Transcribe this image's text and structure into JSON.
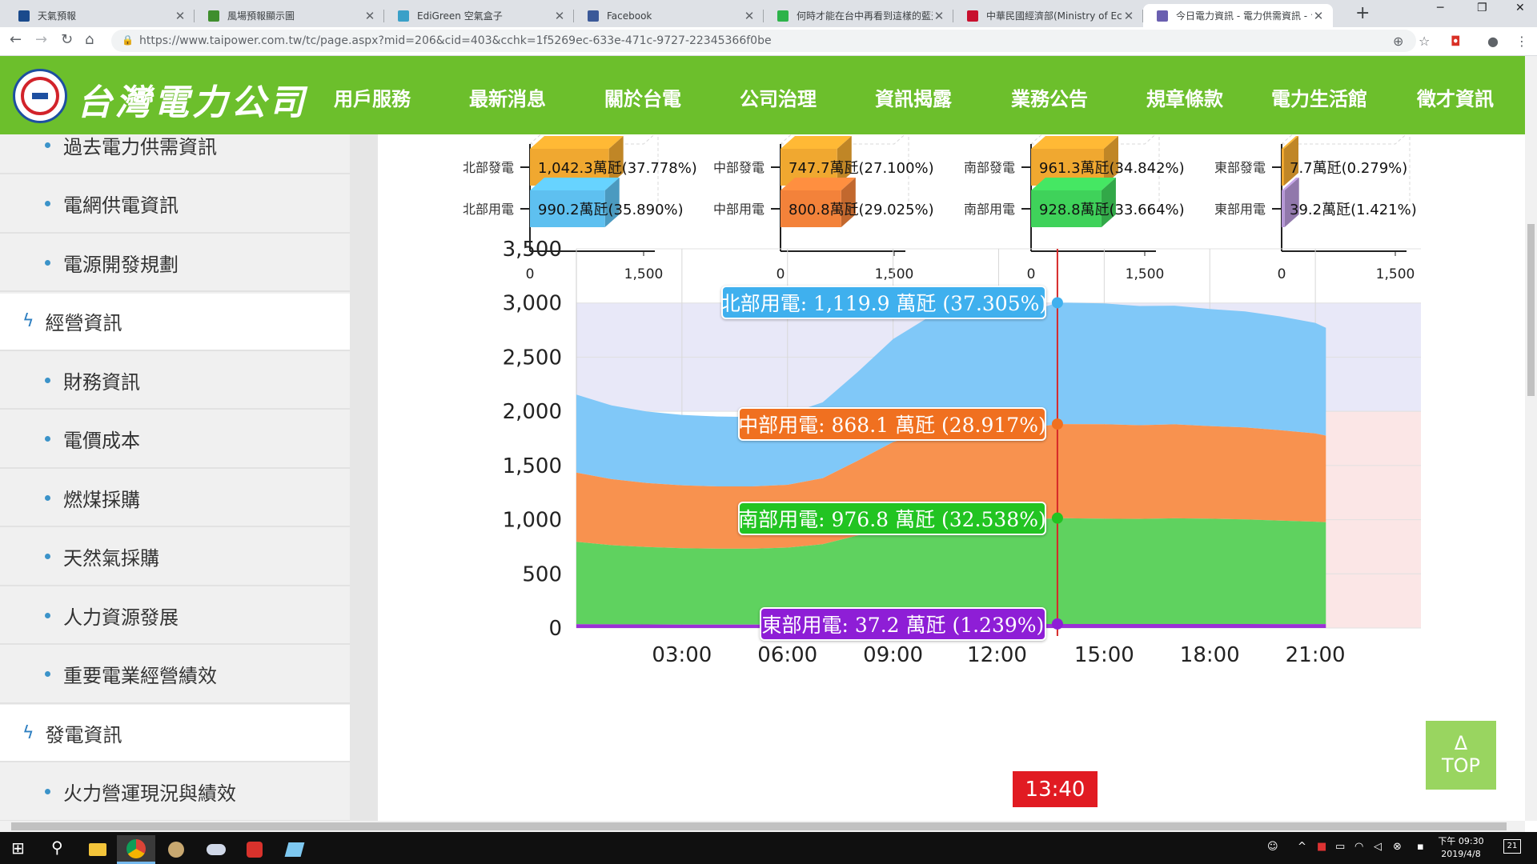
{
  "browser": {
    "tabs": [
      {
        "title": "天氣預報",
        "icon_color": "#1a4a8c",
        "active": false
      },
      {
        "title": "風場預報顯示圖",
        "icon_color": "#3f8e2d",
        "active": false
      },
      {
        "title": "EdiGreen 空氣盒子",
        "icon_color": "#3aa0c8",
        "active": false
      },
      {
        "title": "Facebook",
        "icon_color": "#3b5998",
        "active": false
      },
      {
        "title": "何時才能在台中再看到這樣的藍天",
        "icon_color": "#2db34a",
        "active": false
      },
      {
        "title": "中華民國經濟部(Ministry of Econ",
        "icon_color": "#c8102e",
        "active": false
      },
      {
        "title": "今日電力資訊 - 電力供需資訊 - 台",
        "icon_color": "#6a5fb0",
        "active": true
      }
    ],
    "new_tab": "+",
    "window": {
      "minimize": "─",
      "maximize": "❐",
      "close": "✕"
    },
    "url": "https://www.taipower.com.tw/tc/page.aspx?mid=206&cid=403&cchk=1f5269ec-633e-471c-9727-22345366f0be",
    "nav": {
      "back": "←",
      "forward": "→",
      "reload": "↻",
      "home": "⌂",
      "lock": "🔒"
    },
    "toolbar_icons": {
      "zoom": "⊕",
      "star": "☆",
      "ext": "◘",
      "profile": "●",
      "menu": "⋮"
    }
  },
  "site": {
    "logo_text": "台灣電力公司",
    "menu": [
      "用戶服務",
      "最新消息",
      "關於台電",
      "公司治理",
      "資訊揭露",
      "業務公告",
      "規章條款",
      "電力生活館",
      "徵才資訊"
    ],
    "active_menu_index": 4
  },
  "sidebar": {
    "items": [
      {
        "label": "過去電力供需資訊",
        "type": "sub"
      },
      {
        "label": "電網供電資訊",
        "type": "sub"
      },
      {
        "label": "電源開發規劃",
        "type": "sub"
      },
      {
        "label": "經營資訊",
        "type": "cat"
      },
      {
        "label": "財務資訊",
        "type": "sub"
      },
      {
        "label": "電價成本",
        "type": "sub"
      },
      {
        "label": "燃煤採購",
        "type": "sub"
      },
      {
        "label": "天然氣採購",
        "type": "sub"
      },
      {
        "label": "人力資源發展",
        "type": "sub"
      },
      {
        "label": "重要電業經營績效",
        "type": "sub"
      },
      {
        "label": "發電資訊",
        "type": "cat"
      },
      {
        "label": "火力營運現況與績效",
        "type": "sub"
      }
    ]
  },
  "chart_data": [
    {
      "type": "bar",
      "region": "北部",
      "categories": [
        "北部發電",
        "北部用電"
      ],
      "labels": [
        "1,042.3萬瓩(37.778%)",
        "990.2萬瓩(35.890%)"
      ],
      "values": [
        1042.3,
        990.2
      ],
      "colors": [
        "#f0a830",
        "#5ec0f0"
      ],
      "xlim": [
        0,
        1500
      ],
      "xticks": [
        "0",
        "1,500"
      ]
    },
    {
      "type": "bar",
      "region": "中部",
      "categories": [
        "中部發電",
        "中部用電"
      ],
      "labels": [
        "747.7萬瓩(27.100%)",
        "800.8萬瓩(29.025%)"
      ],
      "values": [
        747.7,
        800.8
      ],
      "colors": [
        "#f0a830",
        "#f3823a"
      ],
      "xlim": [
        0,
        1500
      ],
      "xticks": [
        "0",
        "1,500"
      ]
    },
    {
      "type": "bar",
      "region": "南部",
      "categories": [
        "南部發電",
        "南部用電"
      ],
      "labels": [
        "961.3萬瓩(34.842%)",
        "928.8萬瓩(33.664%)"
      ],
      "values": [
        961.3,
        928.8
      ],
      "colors": [
        "#f0a830",
        "#3fd25a"
      ],
      "xlim": [
        0,
        1500
      ],
      "xticks": [
        "0",
        "1,500"
      ]
    },
    {
      "type": "bar",
      "region": "東部",
      "categories": [
        "東部發電",
        "東部用電"
      ],
      "labels": [
        "7.7萬瓩(0.279%)",
        "39.2萬瓩(1.421%)"
      ],
      "values": [
        7.7,
        39.2
      ],
      "colors": [
        "#f0a830",
        "#b596d6"
      ],
      "xlim": [
        0,
        1500
      ],
      "xticks": [
        "0",
        "1,500"
      ]
    },
    {
      "type": "area",
      "stacked": true,
      "ylim": [
        0,
        3500
      ],
      "yticks": [
        "0",
        "500",
        "1,000",
        "1,500",
        "2,000",
        "2,500",
        "3,000",
        "3,500"
      ],
      "xticks": [
        "03:00",
        "06:00",
        "09:00",
        "12:00",
        "15:00",
        "18:00",
        "21:00"
      ],
      "xlim_hours": [
        0,
        24
      ],
      "x_hours": [
        0,
        1,
        2,
        3,
        4,
        5,
        6,
        7,
        8,
        9,
        10,
        11,
        12,
        13,
        13.67,
        14,
        15,
        16,
        17,
        18,
        19,
        20,
        21,
        21.3
      ],
      "cursor_hour": 13.67,
      "cursor_label": "13:40",
      "bands": [
        {
          "from": 2000,
          "to": 3000,
          "color": "#e8e8f8",
          "start_hour": 0,
          "end_hour": 24
        },
        {
          "from": 0,
          "to": 2000,
          "color": "#fbe6e6",
          "start_hour": 21.3,
          "end_hour": 24
        }
      ],
      "series": [
        {
          "name": "東部用電",
          "color": "#9b30d6",
          "values": [
            35,
            34,
            33,
            32,
            32,
            32,
            32,
            33,
            35,
            36,
            37,
            37,
            37,
            37,
            37.2,
            37,
            37,
            37,
            37,
            37,
            37,
            36,
            36,
            36
          ]
        },
        {
          "name": "南部用電",
          "color": "#5fd25f",
          "values": [
            760,
            730,
            715,
            705,
            700,
            700,
            710,
            740,
            820,
            900,
            950,
            970,
            975,
            965,
            976.8,
            975,
            972,
            970,
            975,
            972,
            965,
            955,
            945,
            940
          ]
        },
        {
          "name": "中部用電",
          "color": "#f8924f",
          "values": [
            640,
            610,
            590,
            580,
            575,
            575,
            580,
            610,
            690,
            780,
            830,
            855,
            860,
            850,
            868.1,
            870,
            872,
            865,
            868,
            855,
            850,
            835,
            815,
            800
          ]
        },
        {
          "name": "北部用電",
          "color": "#80c8f8",
          "values": [
            720,
            680,
            660,
            650,
            645,
            640,
            650,
            700,
            820,
            950,
            1050,
            1090,
            1100,
            1080,
            1119.9,
            1120,
            1115,
            1100,
            1095,
            1080,
            1070,
            1050,
            1020,
            995
          ]
        }
      ],
      "tooltips": [
        {
          "text": "北部用電: 1,119.9 萬瓩 (37.305%)",
          "color": "#3fb0ee"
        },
        {
          "text": "中部用電: 868.1 萬瓩 (28.917%)",
          "color": "#f07020"
        },
        {
          "text": "南部用電: 976.8 萬瓩 (32.538%)",
          "color": "#22c422"
        },
        {
          "text": "東部用電: 37.2 萬瓩 (1.239%)",
          "color": "#8e1ed6"
        }
      ]
    }
  ],
  "top_button": {
    "arrow": "Δ",
    "label": "TOP"
  },
  "taskbar": {
    "clock_time": "下午 09:30",
    "clock_date": "2019/4/8",
    "notification_count": "21",
    "start_icon": "⊞",
    "search_icon": "⚲"
  }
}
